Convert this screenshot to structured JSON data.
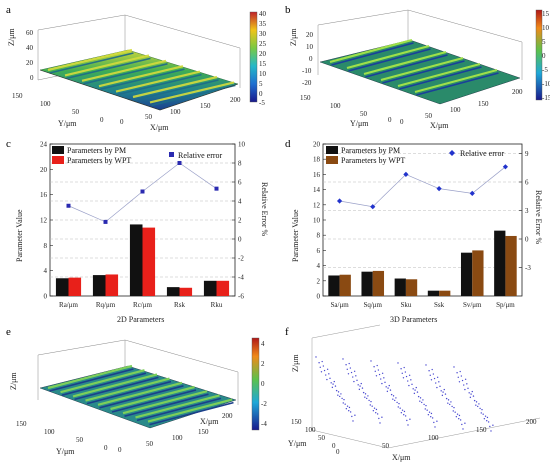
{
  "panel_letters": {
    "a": "a",
    "b": "b",
    "c": "c",
    "d": "d",
    "e": "e",
    "f": "f"
  },
  "colors": {
    "pm_bar": "#111111",
    "wpt_c": "#e8201a",
    "wpt_d": "#8a4a12",
    "relative_error_c": "#2a2ab0",
    "relative_error_d": "#2233cc",
    "grid": "#bbbbbb"
  },
  "panel_a": {
    "z_label": "Z/μm",
    "y_label": "Y/μm",
    "x_label": "X/μm",
    "z_ticks": [
      "60",
      "40",
      "20",
      "0"
    ],
    "y_ticks": [
      "150",
      "100",
      "50",
      "0"
    ],
    "x_ticks": [
      "0",
      "50",
      "100",
      "150",
      "200"
    ],
    "colorbar_ticks": [
      "40",
      "35",
      "30",
      "25",
      "20",
      "15",
      "10",
      "5",
      "0",
      "-5"
    ]
  },
  "panel_b": {
    "z_label": "Z/μm",
    "y_label": "Y/μm",
    "x_label": "X/μm",
    "z_ticks": [
      "20",
      "10",
      "0",
      "-10",
      "-20"
    ],
    "y_ticks": [
      "150",
      "100",
      "50",
      "0"
    ],
    "x_ticks": [
      "0",
      "50",
      "100",
      "150",
      "200"
    ],
    "colorbar_ticks": [
      "15",
      "10",
      "5",
      "0",
      "-5",
      "-10",
      "-15"
    ]
  },
  "panel_e": {
    "z_label": "Z/μm",
    "y_label": "Y/μm",
    "x_label": "X/μm",
    "y_ticks": [
      "150",
      "100",
      "50",
      "0"
    ],
    "x_ticks": [
      "0",
      "50",
      "100",
      "150",
      "200"
    ],
    "colorbar_ticks": [
      "4",
      "2",
      "0",
      "-2",
      "-4"
    ]
  },
  "panel_f": {
    "z_label": "Z/μm",
    "y_label": "Y/μm",
    "x_label": "X/μm",
    "y_ticks": [
      "150",
      "100",
      "50",
      "0"
    ],
    "x_ticks": [
      "0",
      "50",
      "100",
      "150",
      "200"
    ]
  },
  "chart_data": [
    {
      "type": "bar",
      "panel": "c",
      "categories": [
        "Ra/μm",
        "Rq/μm",
        "Rc/μm",
        "Rsk",
        "Rku"
      ],
      "series": [
        {
          "name": "Parameters by PM",
          "values": [
            2.8,
            3.3,
            11.3,
            1.4,
            2.4
          ]
        },
        {
          "name": "Parameters by WPT",
          "values": [
            2.9,
            3.4,
            10.8,
            1.3,
            2.4
          ]
        }
      ],
      "line_series": {
        "name": "Relative error",
        "values": [
          3.5,
          1.8,
          5.0,
          8.0,
          5.3
        ]
      },
      "xlabel": "2D Parameters",
      "ylabel": "Parameter Value",
      "y2label": "Relative Error %",
      "ylim": [
        0,
        24
      ],
      "y_ticks": [
        0,
        4,
        8,
        12,
        16,
        20,
        24
      ],
      "y2lim": [
        -6,
        10
      ],
      "y2_ticks": [
        -6,
        -4,
        -2,
        0,
        2,
        4,
        6,
        8,
        10
      ],
      "grid": "horizontal dashed",
      "legend": "top-left"
    },
    {
      "type": "bar",
      "panel": "d",
      "categories": [
        "Sa/μm",
        "Sq/μm",
        "Sku",
        "Ssk",
        "Sv/μm",
        "Sp/μm"
      ],
      "series": [
        {
          "name": "Parameters by PM",
          "values": [
            2.7,
            3.2,
            2.3,
            0.7,
            5.7,
            8.6
          ]
        },
        {
          "name": "Parameters by WPT",
          "values": [
            2.8,
            3.3,
            2.2,
            0.7,
            6.0,
            7.9
          ]
        }
      ],
      "line_series": {
        "name": "Relative error",
        "values": [
          4.0,
          3.4,
          6.8,
          5.3,
          4.8,
          7.6
        ]
      },
      "xlabel": "3D Parameters",
      "ylabel": "Parameter Value",
      "y2label": "Relative Error %",
      "ylim": [
        0,
        20
      ],
      "y_ticks": [
        0,
        2,
        4,
        6,
        8,
        10,
        12,
        14,
        16,
        18,
        20
      ],
      "y2lim": [
        -6,
        10
      ],
      "y2_ticks": [
        -3,
        0,
        3,
        6,
        9
      ],
      "grid": "horizontal dashed",
      "legend": "top-left"
    }
  ]
}
